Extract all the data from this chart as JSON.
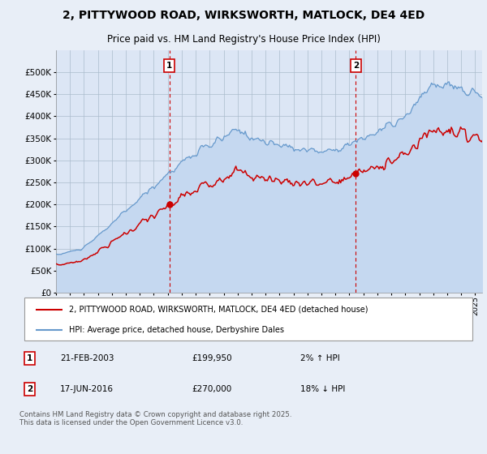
{
  "title": "2, PITTYWOOD ROAD, WIRKSWORTH, MATLOCK, DE4 4ED",
  "subtitle": "Price paid vs. HM Land Registry's House Price Index (HPI)",
  "sale1_price": 199950,
  "sale1_hpi_rel": "2% ↑ HPI",
  "sale1_display": "21-FEB-2003",
  "sale1_year": 2003.125,
  "sale2_price": 270000,
  "sale2_hpi_rel": "18% ↓ HPI",
  "sale2_display": "17-JUN-2016",
  "sale2_year": 2016.458,
  "legend_red": "2, PITTYWOOD ROAD, WIRKSWORTH, MATLOCK, DE4 4ED (detached house)",
  "legend_blue": "HPI: Average price, detached house, Derbyshire Dales",
  "footnote": "Contains HM Land Registry data © Crown copyright and database right 2025.\nThis data is licensed under the Open Government Licence v3.0.",
  "ylim_min": 0,
  "ylim_max": 550000,
  "xmin": 1995,
  "xmax": 2025.5,
  "background_color": "#e8eef7",
  "plot_bg": "#dce6f5",
  "red_color": "#cc0000",
  "blue_color": "#6699cc",
  "blue_fill": "#c5d8f0",
  "grid_color": "#aabbcc",
  "vline_color": "#cc0000",
  "marker_border": "#cc0000"
}
